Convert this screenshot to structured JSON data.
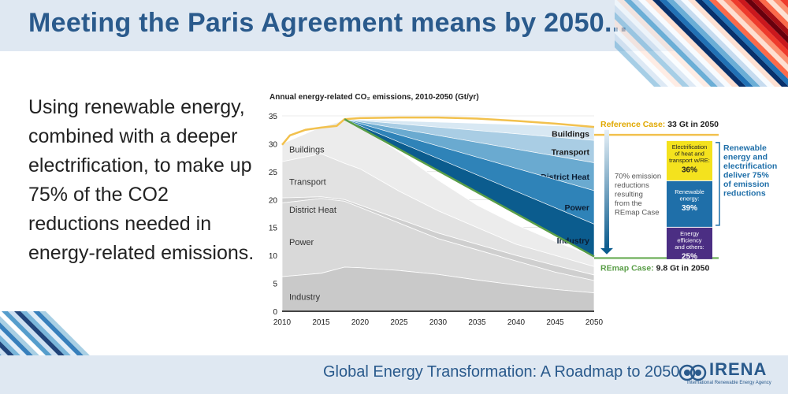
{
  "header": {
    "title": "Meeting the Paris Agreement means by 2050..."
  },
  "body": {
    "lines": [
      "Using renewable energy,",
      "combined with a deeper",
      "electrification, to make up",
      "75% of the CO2",
      "reductions needed in",
      "energy-related emissions."
    ]
  },
  "footer": {
    "text": "Global Energy Transformation: A Roadmap to 2050",
    "logo_name": "IRENA",
    "logo_sub": "International Renewable Energy Agency"
  },
  "colors": {
    "title": "#2a5a8c",
    "reference": "#f2c14e",
    "remap": "#7cb76a",
    "energy_efficiency": "#4b2e83",
    "renewable_energy": "#1f6fa9",
    "electrification": "#f4e21e"
  },
  "chart_data": {
    "type": "area",
    "title": "Annual energy-related CO₂ emissions, 2010-2050 (Gt/yr)",
    "x_ticks": [
      2010,
      2015,
      2020,
      2025,
      2030,
      2035,
      2040,
      2045,
      2050
    ],
    "y_ticks": [
      0,
      5,
      10,
      15,
      20,
      25,
      30,
      35
    ],
    "xlim": [
      2010,
      2050
    ],
    "ylim": [
      0,
      35
    ],
    "sectors_left": {
      "years": [
        2010,
        2015,
        2018,
        2020,
        2025,
        2030,
        2035,
        2040,
        2045,
        2050
      ],
      "series": [
        {
          "name": "Industry",
          "values": [
            6.2,
            6.8,
            7.9,
            7.8,
            7.3,
            6.6,
            5.6,
            4.7,
            3.9,
            3.3
          ]
        },
        {
          "name": "Power",
          "values": [
            19.4,
            20.2,
            19.7,
            18.6,
            15.8,
            13.0,
            11.0,
            9.0,
            7.0,
            5.5
          ]
        },
        {
          "name": "District Heat",
          "values": [
            20.3,
            20.5,
            20.0,
            19.0,
            16.5,
            14.0,
            12.0,
            10.0,
            8.2,
            6.5
          ]
        },
        {
          "name": "Transport",
          "values": [
            26.8,
            28.2,
            26.5,
            25.5,
            21.5,
            18.0,
            15.0,
            12.0,
            10.0,
            8.0
          ]
        },
        {
          "name": "Buildings",
          "values": [
            30.0,
            33.0,
            34.2,
            33.0,
            28.5,
            23.5,
            19.0,
            15.5,
            12.5,
            9.8
          ]
        }
      ]
    },
    "reference_case": {
      "name": "Reference Case:",
      "value_label": "33 Gt in 2050",
      "x": [
        2010,
        2011,
        2013,
        2015,
        2017,
        2018,
        2020,
        2025,
        2030,
        2035,
        2040,
        2045,
        2050
      ],
      "y": [
        29.8,
        31.5,
        32.5,
        32.9,
        33.2,
        34.4,
        34.6,
        34.7,
        34.7,
        34.5,
        34.1,
        33.6,
        33.0
      ]
    },
    "remap_case": {
      "name": "REmap Case:",
      "value_label": "9.8 Gt in 2050",
      "x": [
        2018,
        2050
      ],
      "y": [
        34.4,
        9.8
      ]
    },
    "reduction_bands_2050": [
      {
        "name": "Buildings",
        "lower": 30.6,
        "upper": 33.0
      },
      {
        "name": "Transport",
        "lower": 26.6,
        "upper": 30.6
      },
      {
        "name": "District Heat",
        "lower": 21.6,
        "upper": 26.6
      },
      {
        "name": "Power",
        "lower": 15.6,
        "upper": 21.6
      },
      {
        "name": "Industry",
        "lower": 9.8,
        "upper": 15.6
      }
    ],
    "annotation": "70% emission reductions resulting from the REmap Case",
    "breakdown": [
      {
        "label": "Electrification of heat and transport w/RE:",
        "value": "36%"
      },
      {
        "label": "Renewable energy:",
        "value": "39%"
      },
      {
        "label": "Energy efficiency and others:",
        "value": "25%"
      }
    ],
    "breakdown_note": "Renewable energy and electrification deliver 75% of emission reductions"
  }
}
